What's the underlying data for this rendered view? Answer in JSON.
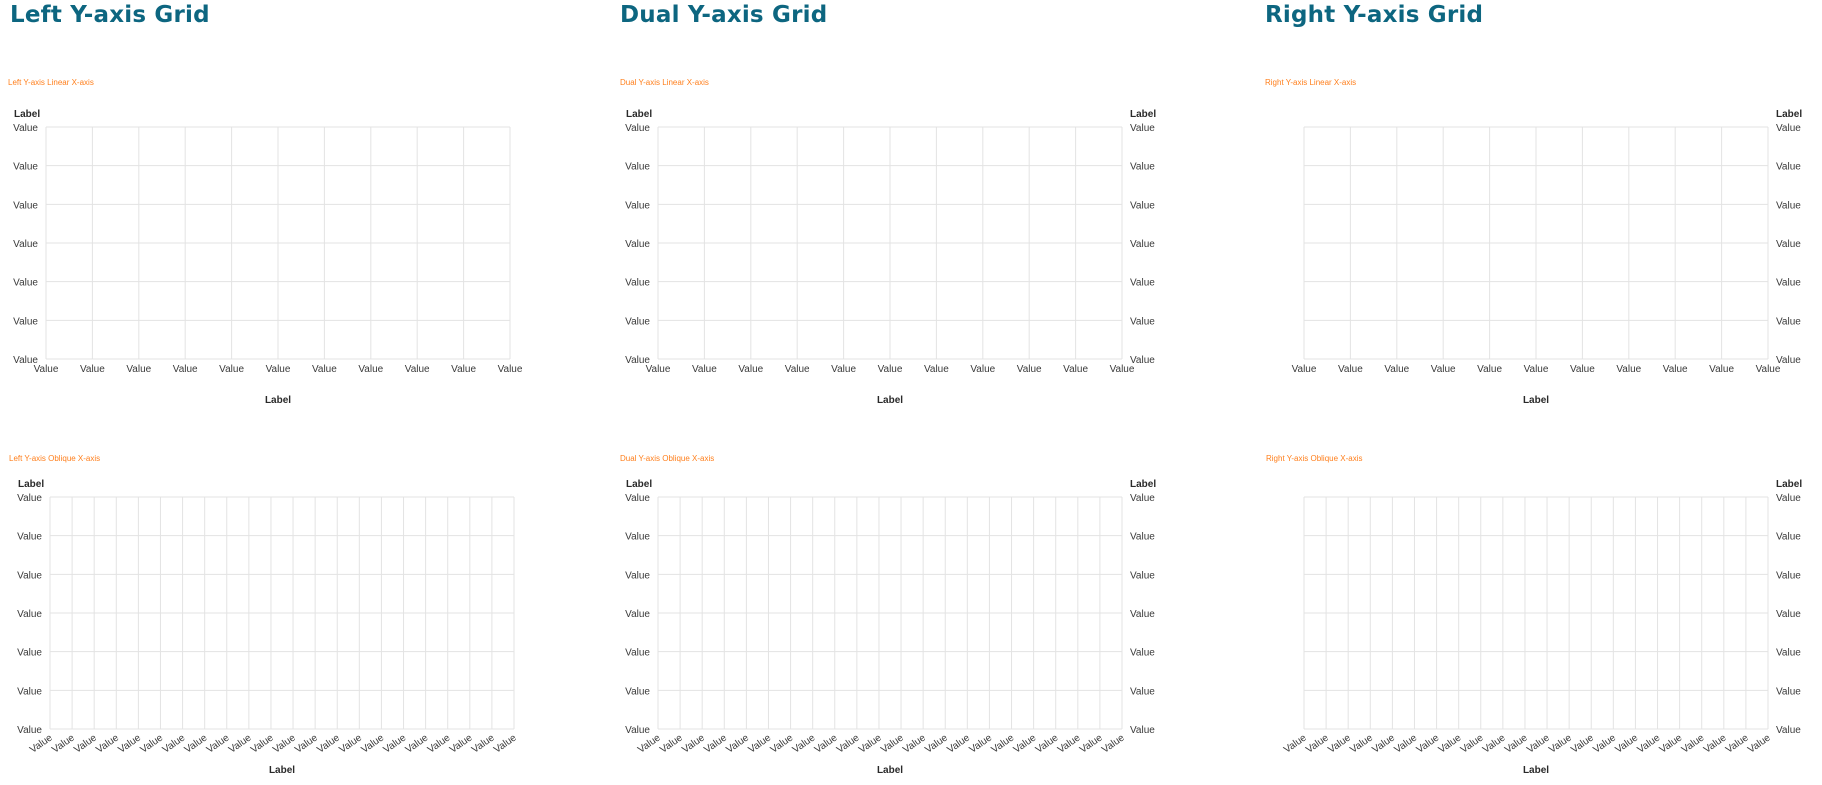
{
  "columns": [
    {
      "title": "Left Y-axis Grid"
    },
    {
      "title": "Dual Y-axis Grid"
    },
    {
      "title": "Right Y-axis Grid"
    }
  ],
  "colors": {
    "title": "#0d6680",
    "panel_title": "#ff7f1c",
    "grid": "#e3e3e3",
    "text": "#3a3a3a"
  },
  "chart_data": [
    {
      "type": "grid",
      "title": "Left Y-axis Linear X-axis",
      "y_axis": "left",
      "x_axis": "linear",
      "ylabel": "Label",
      "xlabel": "Label",
      "y_ticks": [
        "Value",
        "Value",
        "Value",
        "Value",
        "Value",
        "Value",
        "Value"
      ],
      "x_ticks": [
        "Value",
        "Value",
        "Value",
        "Value",
        "Value",
        "Value",
        "Value",
        "Value",
        "Value",
        "Value",
        "Value"
      ],
      "grid": true
    },
    {
      "type": "grid",
      "title": "Dual Y-axis Linear X-axis",
      "y_axis": "dual",
      "x_axis": "linear",
      "ylabel": "Label",
      "ylabel_right": "Label",
      "xlabel": "Label",
      "y_ticks": [
        "Value",
        "Value",
        "Value",
        "Value",
        "Value",
        "Value",
        "Value"
      ],
      "x_ticks": [
        "Value",
        "Value",
        "Value",
        "Value",
        "Value",
        "Value",
        "Value",
        "Value",
        "Value",
        "Value",
        "Value"
      ],
      "grid": true
    },
    {
      "type": "grid",
      "title": "Right Y-axis Linear X-axis",
      "y_axis": "right",
      "x_axis": "linear",
      "ylabel_right": "Label",
      "xlabel": "Label",
      "y_ticks": [
        "Value",
        "Value",
        "Value",
        "Value",
        "Value",
        "Value",
        "Value"
      ],
      "x_ticks": [
        "Value",
        "Value",
        "Value",
        "Value",
        "Value",
        "Value",
        "Value",
        "Value",
        "Value",
        "Value",
        "Value"
      ],
      "grid": true
    },
    {
      "type": "grid",
      "title": "Left Y-axis Oblique X-axis",
      "y_axis": "left",
      "x_axis": "oblique",
      "ylabel": "Label",
      "xlabel": "Label",
      "y_ticks": [
        "Value",
        "Value",
        "Value",
        "Value",
        "Value",
        "Value",
        "Value"
      ],
      "x_ticks": [
        "Value",
        "Value",
        "Value",
        "Value",
        "Value",
        "Value",
        "Value",
        "Value",
        "Value",
        "Value",
        "Value",
        "Value",
        "Value",
        "Value",
        "Value",
        "Value",
        "Value",
        "Value",
        "Value",
        "Value",
        "Value",
        "Value"
      ],
      "grid": true
    },
    {
      "type": "grid",
      "title": "Dual Y-axis Oblique X-axis",
      "y_axis": "dual",
      "x_axis": "oblique",
      "ylabel": "Label",
      "ylabel_right": "Label",
      "xlabel": "Label",
      "y_ticks": [
        "Value",
        "Value",
        "Value",
        "Value",
        "Value",
        "Value",
        "Value"
      ],
      "x_ticks": [
        "Value",
        "Value",
        "Value",
        "Value",
        "Value",
        "Value",
        "Value",
        "Value",
        "Value",
        "Value",
        "Value",
        "Value",
        "Value",
        "Value",
        "Value",
        "Value",
        "Value",
        "Value",
        "Value",
        "Value",
        "Value",
        "Value"
      ],
      "grid": true
    },
    {
      "type": "grid",
      "title": "Right Y-axis Oblique X-axis",
      "y_axis": "right",
      "x_axis": "oblique",
      "ylabel_right": "Label",
      "xlabel": "Label",
      "y_ticks": [
        "Value",
        "Value",
        "Value",
        "Value",
        "Value",
        "Value",
        "Value"
      ],
      "x_ticks": [
        "Value",
        "Value",
        "Value",
        "Value",
        "Value",
        "Value",
        "Value",
        "Value",
        "Value",
        "Value",
        "Value",
        "Value",
        "Value",
        "Value",
        "Value",
        "Value",
        "Value",
        "Value",
        "Value",
        "Value",
        "Value",
        "Value"
      ],
      "grid": true
    }
  ]
}
